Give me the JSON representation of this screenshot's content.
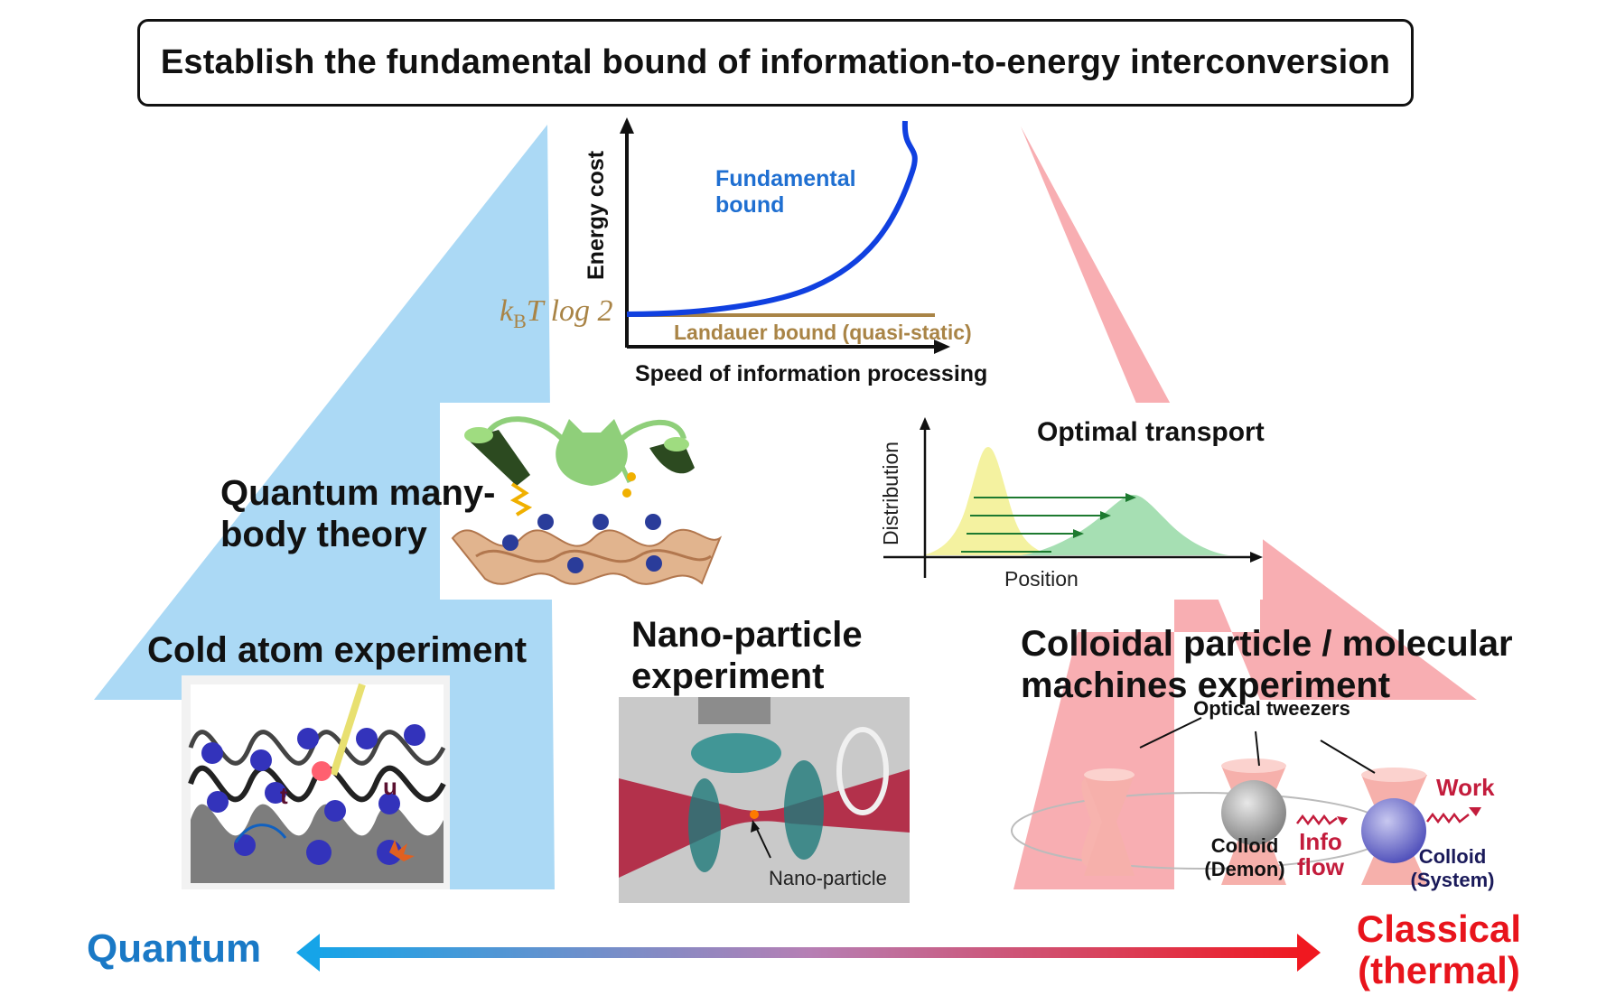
{
  "title": "Establish the fundamental bound of information-to-energy interconversion",
  "energy_plot": {
    "y_axis_label": "Energy cost",
    "x_axis_label": "Speed of information processing",
    "curve_label_line1": "Fundamental",
    "curve_label_line2": "bound",
    "landauer_label": "Landauer bound (quasi-static)",
    "kbt_prefix": "k",
    "kbt_sub": "B",
    "kbt_rest": "T log 2"
  },
  "optimal_transport": {
    "title": "Optimal transport",
    "y_axis_label": "Distribution",
    "x_axis_label": "Position"
  },
  "quantum_many_body": {
    "line1": "Quantum many-",
    "line2": "body theory"
  },
  "cold_atom": {
    "title": "Cold atom experiment",
    "t_label": "t",
    "u_label": "u"
  },
  "nano_particle": {
    "line1": "Nano-particle",
    "line2": "experiment",
    "pointer_label": "Nano-particle"
  },
  "colloidal": {
    "line1": "Colloidal particle / molecular",
    "line2": "machines experiment",
    "tweezers_label": "Optical tweezers",
    "demon_line1": "Colloid",
    "demon_line2": "(Demon)",
    "system_line1": "Colloid",
    "system_line2": "(System)",
    "info_line1": "Info",
    "info_line2": "flow",
    "work_label": "Work"
  },
  "scale": {
    "left_label": "Quantum",
    "right_line1": "Classical",
    "right_line2": "(thermal)"
  },
  "colors": {
    "quantum_blue": "#9fd3f4",
    "classical_pink": "#f7a8ac",
    "curve_blue": "#1040e0",
    "landauer_tan": "#a98446",
    "arrow_left": "#16a4e8",
    "arrow_right": "#f01820"
  }
}
